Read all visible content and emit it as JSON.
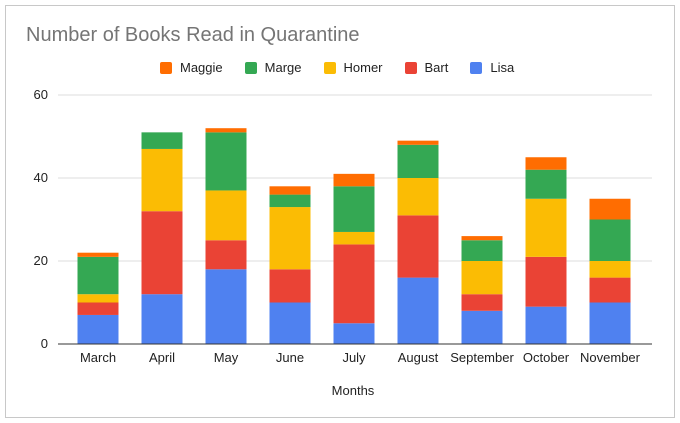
{
  "chart_data": {
    "type": "bar",
    "stacked": true,
    "title": "Number of Books Read in Quarantine",
    "xlabel": "Months",
    "ylabel": "",
    "ylim": [
      0,
      60
    ],
    "yticks": [
      0,
      20,
      40,
      60
    ],
    "grid": true,
    "legend_position": "top",
    "categories": [
      "March",
      "April",
      "May",
      "June",
      "July",
      "August",
      "September",
      "October",
      "November"
    ],
    "series": [
      {
        "name": "Lisa",
        "color": "#4f81f0",
        "values": [
          7,
          12,
          18,
          10,
          5,
          16,
          8,
          9,
          10
        ]
      },
      {
        "name": "Bart",
        "color": "#ea4335",
        "values": [
          3,
          20,
          7,
          8,
          19,
          15,
          4,
          12,
          6
        ]
      },
      {
        "name": "Homer",
        "color": "#fbbc04",
        "values": [
          2,
          15,
          12,
          15,
          3,
          9,
          8,
          14,
          4
        ]
      },
      {
        "name": "Marge",
        "color": "#34a853",
        "values": [
          9,
          4,
          14,
          3,
          11,
          8,
          5,
          7,
          10
        ]
      },
      {
        "name": "Maggie",
        "color": "#ff6d01",
        "values": [
          1,
          0,
          1,
          2,
          3,
          1,
          1,
          3,
          5
        ]
      }
    ],
    "legend_order": [
      "Maggie",
      "Marge",
      "Homer",
      "Bart",
      "Lisa"
    ]
  }
}
